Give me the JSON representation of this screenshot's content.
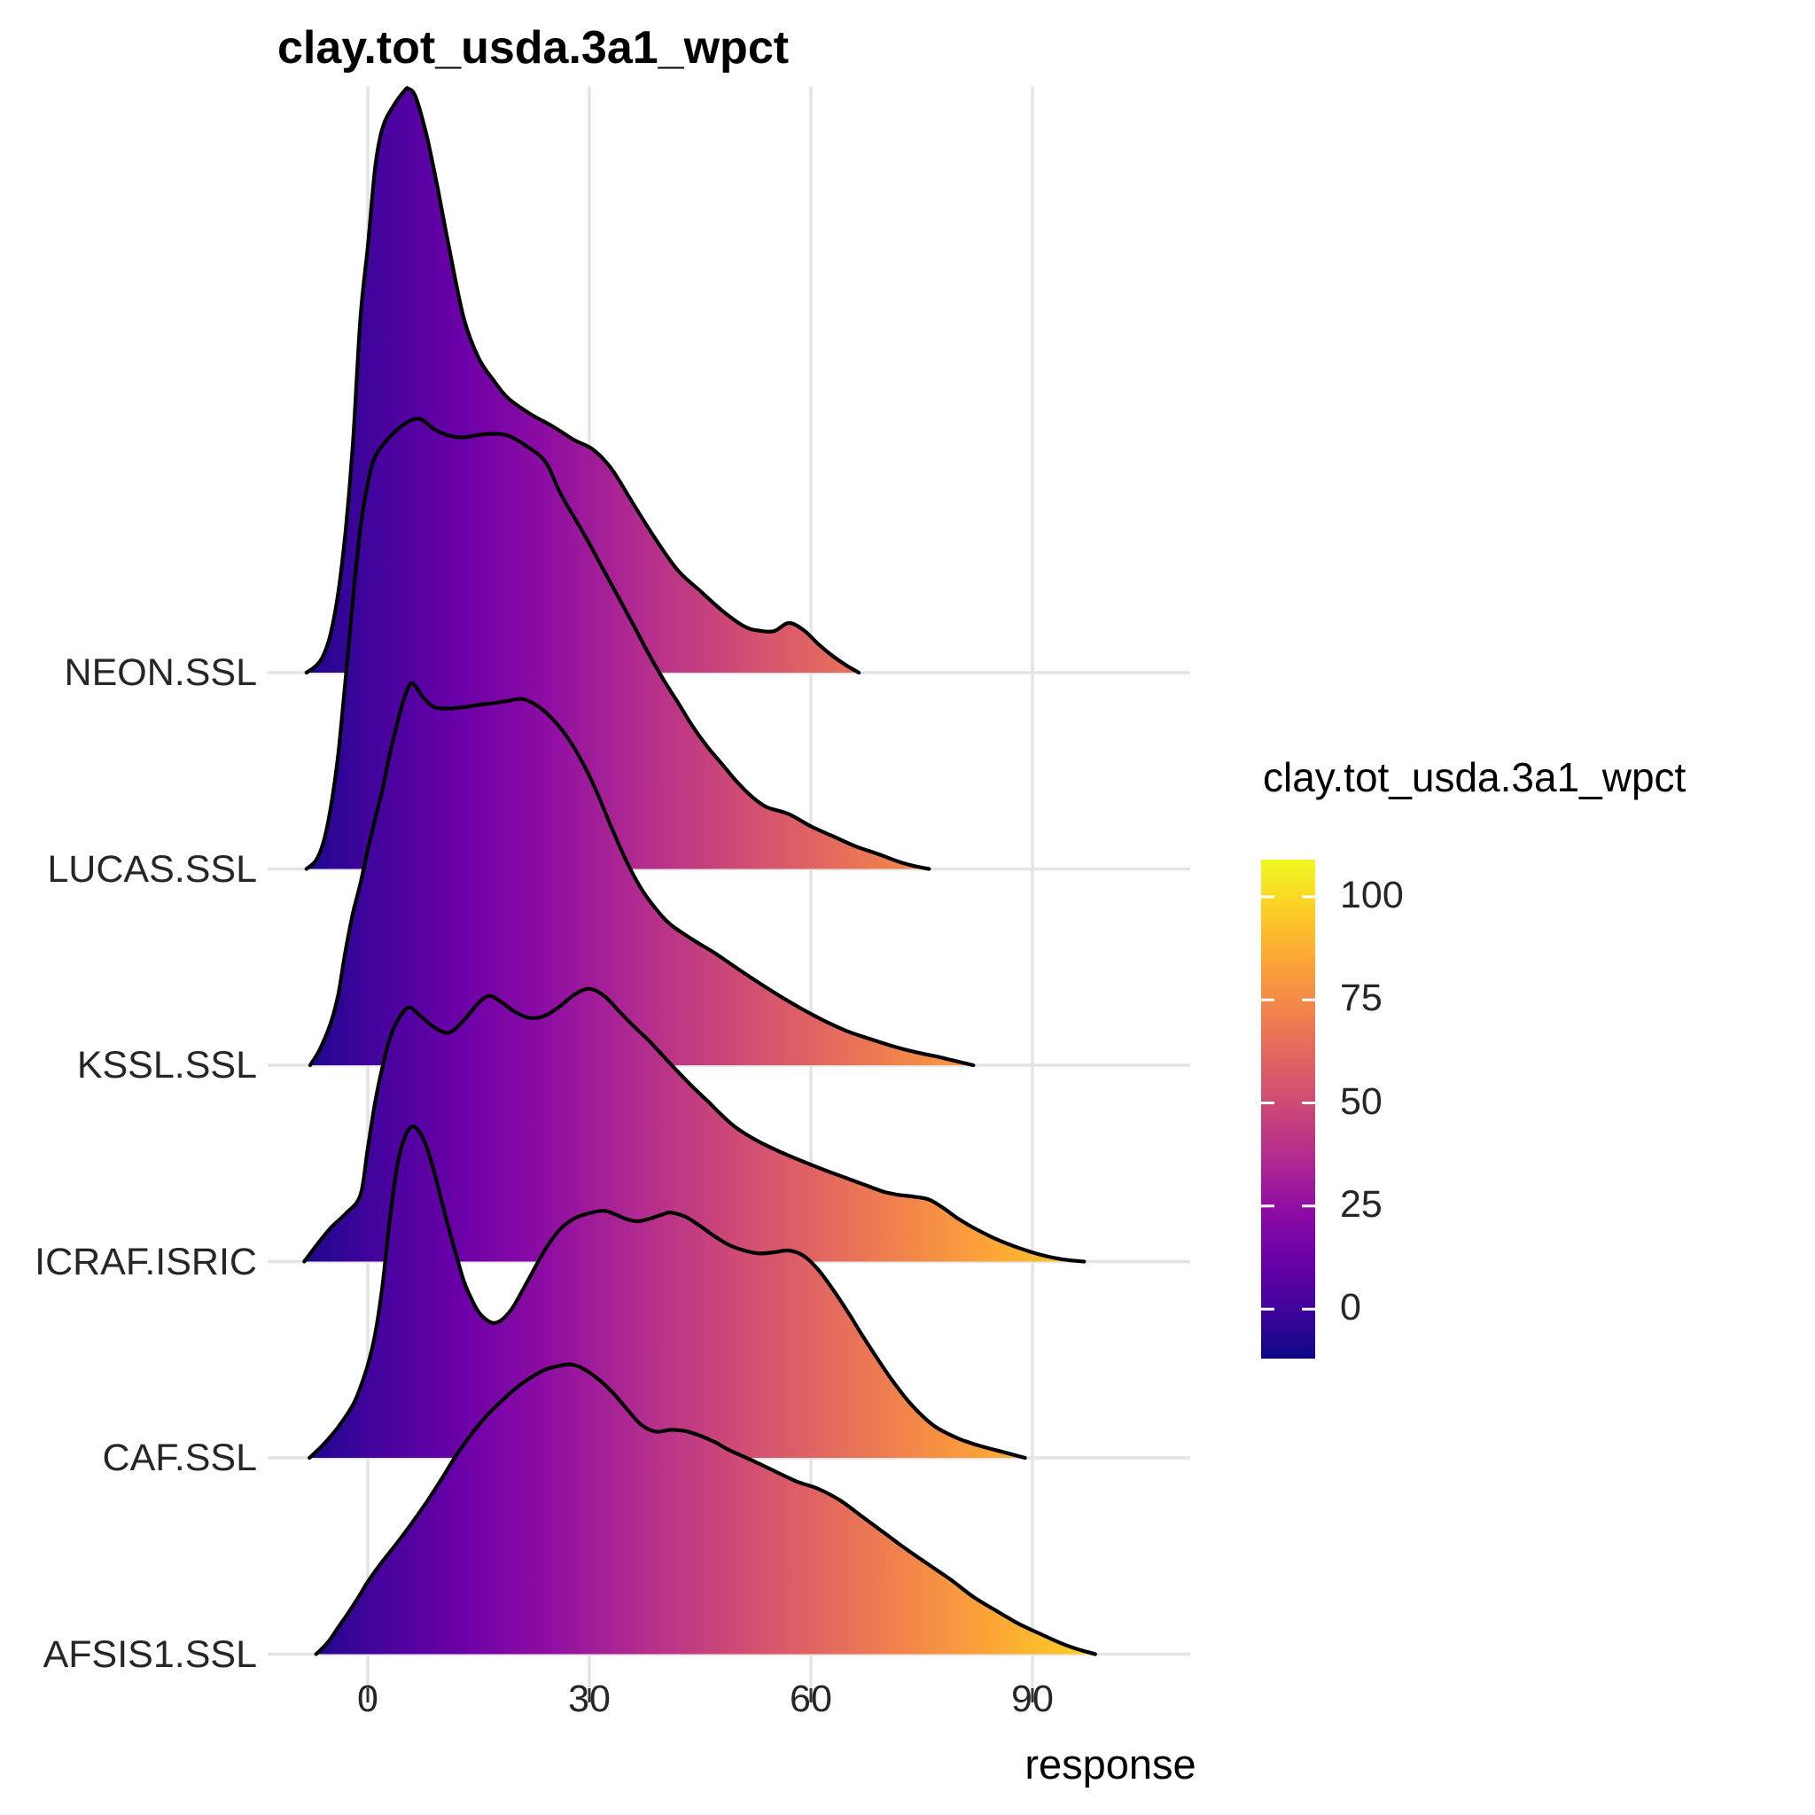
{
  "title": "clay.tot_usda.3a1_wpct",
  "axis": {
    "xlabel": "response",
    "x_ticks": [
      0,
      30,
      60,
      90
    ]
  },
  "legend": {
    "title": "clay.tot_usda.3a1_wpct",
    "ticks": [
      100,
      75,
      50,
      25,
      0
    ]
  },
  "chart_data": {
    "type": "ridgeline-density",
    "title": "clay.tot_usda.3a1_wpct",
    "xlabel": "response",
    "x_ticks": [
      0,
      30,
      60,
      90
    ],
    "x_range": [
      -12,
      109
    ],
    "grid": "major-only, light gray, white background",
    "fill": "horizontal plasma gradient mapped to x value, black outline",
    "outline_color": "#000000",
    "gridline_color": "#e4e4e4",
    "colormap_plasma": [
      "#0d0887",
      "#41049d",
      "#6a00a8",
      "#8f0da4",
      "#b12a90",
      "#cc4778",
      "#e16462",
      "#f2844b",
      "#fca636",
      "#fcce25",
      "#f0f921"
    ],
    "categories": [
      "NEON.SSL",
      "LUCAS.SSL",
      "KSSL.SSL",
      "ICRAF.ISRIC",
      "CAF.SSL",
      "AFSIS1.SSL"
    ],
    "note": "points are [response_value, relative_density] with relative_density scaled so 1.0 = tallest peak of the figure (NEON.SSL at ~5.5)",
    "series": [
      {
        "name": "NEON.SSL",
        "points": [
          [
            -8.3,
            0
          ],
          [
            -7,
            0.012
          ],
          [
            -6,
            0.03
          ],
          [
            -5,
            0.068
          ],
          [
            -4,
            0.137
          ],
          [
            -3,
            0.243
          ],
          [
            -2,
            0.395
          ],
          [
            -1,
            0.607
          ],
          [
            0,
            0.729
          ],
          [
            1,
            0.865
          ],
          [
            2,
            0.933
          ],
          [
            3.5,
            0.971
          ],
          [
            5,
            0.997
          ],
          [
            5.5,
            1.0
          ],
          [
            6.5,
            0.985
          ],
          [
            8,
            0.918
          ],
          [
            9.5,
            0.827
          ],
          [
            11,
            0.728
          ],
          [
            13,
            0.607
          ],
          [
            15,
            0.539
          ],
          [
            17,
            0.501
          ],
          [
            19,
            0.47
          ],
          [
            22,
            0.443
          ],
          [
            25,
            0.422
          ],
          [
            28,
            0.398
          ],
          [
            30.5,
            0.382
          ],
          [
            33,
            0.349
          ],
          [
            36,
            0.288
          ],
          [
            39,
            0.228
          ],
          [
            42,
            0.175
          ],
          [
            45,
            0.14
          ],
          [
            48,
            0.106
          ],
          [
            51,
            0.079
          ],
          [
            53,
            0.072
          ],
          [
            55,
            0.071
          ],
          [
            57,
            0.085
          ],
          [
            59,
            0.073
          ],
          [
            61,
            0.049
          ],
          [
            63,
            0.028
          ],
          [
            65,
            0.011
          ],
          [
            66.5,
            0
          ]
        ]
      },
      {
        "name": "LUCAS.SSL",
        "points": [
          [
            -8.3,
            0
          ],
          [
            -7,
            0.015
          ],
          [
            -6,
            0.046
          ],
          [
            -5,
            0.106
          ],
          [
            -4,
            0.197
          ],
          [
            -3,
            0.326
          ],
          [
            -2,
            0.463
          ],
          [
            -1,
            0.584
          ],
          [
            0,
            0.66
          ],
          [
            1,
            0.706
          ],
          [
            3,
            0.74
          ],
          [
            5,
            0.762
          ],
          [
            7,
            0.771
          ],
          [
            9,
            0.753
          ],
          [
            11,
            0.742
          ],
          [
            13,
            0.739
          ],
          [
            15,
            0.743
          ],
          [
            17,
            0.745
          ],
          [
            19,
            0.742
          ],
          [
            21,
            0.728
          ],
          [
            24,
            0.698
          ],
          [
            26,
            0.645
          ],
          [
            28,
            0.601
          ],
          [
            30,
            0.557
          ],
          [
            32,
            0.51
          ],
          [
            34,
            0.464
          ],
          [
            36,
            0.417
          ],
          [
            38,
            0.369
          ],
          [
            40,
            0.325
          ],
          [
            42,
            0.285
          ],
          [
            44,
            0.244
          ],
          [
            46,
            0.209
          ],
          [
            48,
            0.179
          ],
          [
            50,
            0.149
          ],
          [
            52,
            0.124
          ],
          [
            54,
            0.106
          ],
          [
            57,
            0.094
          ],
          [
            60,
            0.073
          ],
          [
            63,
            0.056
          ],
          [
            66,
            0.039
          ],
          [
            69,
            0.026
          ],
          [
            72,
            0.012
          ],
          [
            74,
            0.005
          ],
          [
            76,
            0
          ]
        ]
      },
      {
        "name": "KSSL.SSL",
        "points": [
          [
            -7.8,
            0
          ],
          [
            -6.5,
            0.027
          ],
          [
            -5,
            0.073
          ],
          [
            -4,
            0.121
          ],
          [
            -3,
            0.197
          ],
          [
            -2,
            0.261
          ],
          [
            -1,
            0.311
          ],
          [
            0,
            0.369
          ],
          [
            1,
            0.422
          ],
          [
            2,
            0.473
          ],
          [
            3,
            0.534
          ],
          [
            4,
            0.586
          ],
          [
            5,
            0.631
          ],
          [
            6,
            0.654
          ],
          [
            7.5,
            0.63
          ],
          [
            9,
            0.613
          ],
          [
            11,
            0.611
          ],
          [
            13,
            0.613
          ],
          [
            15,
            0.617
          ],
          [
            17,
            0.62
          ],
          [
            19,
            0.624
          ],
          [
            21,
            0.627
          ],
          [
            23,
            0.615
          ],
          [
            25,
            0.593
          ],
          [
            27,
            0.562
          ],
          [
            29,
            0.52
          ],
          [
            31,
            0.468
          ],
          [
            33,
            0.407
          ],
          [
            35,
            0.35
          ],
          [
            37,
            0.303
          ],
          [
            39,
            0.268
          ],
          [
            41,
            0.241
          ],
          [
            44,
            0.215
          ],
          [
            47,
            0.192
          ],
          [
            50,
            0.166
          ],
          [
            53,
            0.141
          ],
          [
            56,
            0.117
          ],
          [
            59,
            0.095
          ],
          [
            62,
            0.075
          ],
          [
            65,
            0.058
          ],
          [
            68,
            0.045
          ],
          [
            71,
            0.033
          ],
          [
            74,
            0.023
          ],
          [
            77,
            0.015
          ],
          [
            79,
            0.009
          ],
          [
            82,
            0
          ]
        ]
      },
      {
        "name": "ICRAF.ISRIC",
        "points": [
          [
            -8.6,
            0
          ],
          [
            -7,
            0.027
          ],
          [
            -5,
            0.058
          ],
          [
            -3,
            0.082
          ],
          [
            -1,
            0.114
          ],
          [
            0,
            0.194
          ],
          [
            1,
            0.273
          ],
          [
            2,
            0.334
          ],
          [
            3,
            0.382
          ],
          [
            4,
            0.412
          ],
          [
            5.5,
            0.435
          ],
          [
            7,
            0.422
          ],
          [
            9,
            0.401
          ],
          [
            11,
            0.392
          ],
          [
            13,
            0.413
          ],
          [
            15,
            0.443
          ],
          [
            16.5,
            0.455
          ],
          [
            18,
            0.445
          ],
          [
            20,
            0.427
          ],
          [
            22,
            0.417
          ],
          [
            24,
            0.421
          ],
          [
            26,
            0.437
          ],
          [
            28,
            0.457
          ],
          [
            30,
            0.467
          ],
          [
            32,
            0.455
          ],
          [
            34,
            0.429
          ],
          [
            36,
            0.403
          ],
          [
            38,
            0.379
          ],
          [
            40,
            0.352
          ],
          [
            42,
            0.325
          ],
          [
            44,
            0.299
          ],
          [
            46,
            0.275
          ],
          [
            48,
            0.25
          ],
          [
            50,
            0.228
          ],
          [
            53,
            0.205
          ],
          [
            56,
            0.187
          ],
          [
            59,
            0.171
          ],
          [
            62,
            0.156
          ],
          [
            65,
            0.142
          ],
          [
            68,
            0.128
          ],
          [
            70,
            0.119
          ],
          [
            72,
            0.114
          ],
          [
            74,
            0.111
          ],
          [
            76,
            0.106
          ],
          [
            78,
            0.091
          ],
          [
            80,
            0.073
          ],
          [
            82,
            0.058
          ],
          [
            85,
            0.039
          ],
          [
            88,
            0.024
          ],
          [
            91,
            0.012
          ],
          [
            94,
            0.004
          ],
          [
            97,
            0
          ]
        ]
      },
      {
        "name": "CAF.SSL",
        "points": [
          [
            -7.9,
            0
          ],
          [
            -6,
            0.023
          ],
          [
            -4,
            0.053
          ],
          [
            -2,
            0.091
          ],
          [
            -1,
            0.121
          ],
          [
            0,
            0.159
          ],
          [
            1,
            0.212
          ],
          [
            2,
            0.296
          ],
          [
            3,
            0.41
          ],
          [
            4,
            0.501
          ],
          [
            5,
            0.549
          ],
          [
            6,
            0.567
          ],
          [
            7,
            0.558
          ],
          [
            8,
            0.531
          ],
          [
            9,
            0.489
          ],
          [
            10,
            0.44
          ],
          [
            11,
            0.391
          ],
          [
            12,
            0.346
          ],
          [
            13,
            0.303
          ],
          [
            14,
            0.273
          ],
          [
            15,
            0.25
          ],
          [
            16,
            0.237
          ],
          [
            17,
            0.231
          ],
          [
            18,
            0.235
          ],
          [
            19,
            0.247
          ],
          [
            20,
            0.265
          ],
          [
            22,
            0.311
          ],
          [
            24,
            0.356
          ],
          [
            26,
            0.391
          ],
          [
            28,
            0.41
          ],
          [
            30,
            0.419
          ],
          [
            32,
            0.423
          ],
          [
            33.5,
            0.417
          ],
          [
            35,
            0.409
          ],
          [
            36.5,
            0.405
          ],
          [
            38,
            0.409
          ],
          [
            40,
            0.417
          ],
          [
            41,
            0.42
          ],
          [
            43,
            0.413
          ],
          [
            45,
            0.397
          ],
          [
            47,
            0.379
          ],
          [
            49,
            0.364
          ],
          [
            51,
            0.355
          ],
          [
            53,
            0.35
          ],
          [
            55,
            0.352
          ],
          [
            57,
            0.355
          ],
          [
            59,
            0.346
          ],
          [
            61,
            0.322
          ],
          [
            63,
            0.288
          ],
          [
            65,
            0.25
          ],
          [
            67,
            0.209
          ],
          [
            69,
            0.17
          ],
          [
            71,
            0.133
          ],
          [
            73,
            0.1
          ],
          [
            75,
            0.073
          ],
          [
            77,
            0.052
          ],
          [
            80,
            0.033
          ],
          [
            83,
            0.02
          ],
          [
            86,
            0.01
          ],
          [
            89,
            0
          ]
        ]
      },
      {
        "name": "AFSIS1.SSL",
        "points": [
          [
            -7,
            0
          ],
          [
            -6,
            0.012
          ],
          [
            -5,
            0.027
          ],
          [
            -4,
            0.046
          ],
          [
            -3,
            0.064
          ],
          [
            -2,
            0.083
          ],
          [
            -1,
            0.103
          ],
          [
            0,
            0.124
          ],
          [
            2,
            0.159
          ],
          [
            4,
            0.191
          ],
          [
            6,
            0.225
          ],
          [
            8,
            0.261
          ],
          [
            10,
            0.3
          ],
          [
            12,
            0.341
          ],
          [
            14,
            0.376
          ],
          [
            16,
            0.407
          ],
          [
            18,
            0.432
          ],
          [
            20,
            0.455
          ],
          [
            22,
            0.473
          ],
          [
            24,
            0.487
          ],
          [
            26,
            0.494
          ],
          [
            27.5,
            0.496
          ],
          [
            29,
            0.49
          ],
          [
            31,
            0.473
          ],
          [
            33,
            0.45
          ],
          [
            35,
            0.421
          ],
          [
            37,
            0.393
          ],
          [
            39,
            0.381
          ],
          [
            41,
            0.384
          ],
          [
            43,
            0.382
          ],
          [
            45,
            0.374
          ],
          [
            47,
            0.363
          ],
          [
            49,
            0.349
          ],
          [
            52,
            0.332
          ],
          [
            55,
            0.314
          ],
          [
            58,
            0.296
          ],
          [
            61,
            0.283
          ],
          [
            64,
            0.263
          ],
          [
            67,
            0.235
          ],
          [
            70,
            0.207
          ],
          [
            73,
            0.179
          ],
          [
            76,
            0.153
          ],
          [
            79,
            0.127
          ],
          [
            82,
            0.098
          ],
          [
            85,
            0.075
          ],
          [
            88,
            0.053
          ],
          [
            91,
            0.035
          ],
          [
            94,
            0.018
          ],
          [
            96,
            0.009
          ],
          [
            98.5,
            0
          ]
        ]
      }
    ]
  }
}
